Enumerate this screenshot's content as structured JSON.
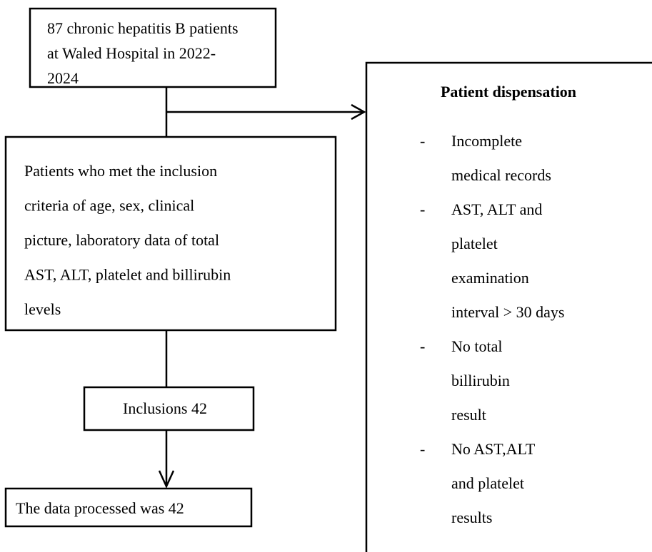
{
  "nodes": [
    {
      "lines": [
        "87 chronic hepatitis B patients",
        "at Waled Hospital in 2022-",
        "2024"
      ]
    },
    {
      "lines": [
        "Patients who met the inclusion",
        "criteria of age, sex, clinical",
        "picture, laboratory data of total",
        "AST, ALT, platelet and billirubin",
        "levels"
      ]
    },
    {
      "lines": [
        "Inclusions 42"
      ]
    },
    {
      "lines": [
        "The data processed was 42"
      ]
    }
  ],
  "dispensation": {
    "title": "Patient dispensation",
    "items": [
      {
        "bullet": "-",
        "lines": [
          "Incomplete",
          "medical records"
        ]
      },
      {
        "bullet": "-",
        "lines": [
          "AST, ALT and",
          "platelet",
          "examination",
          "interval > 30 days"
        ]
      },
      {
        "bullet": "-",
        "lines": [
          "No total",
          "billirubin",
          "result"
        ]
      },
      {
        "bullet": "-",
        "lines": [
          "No AST,ALT",
          "and platelet",
          "results"
        ]
      }
    ]
  }
}
